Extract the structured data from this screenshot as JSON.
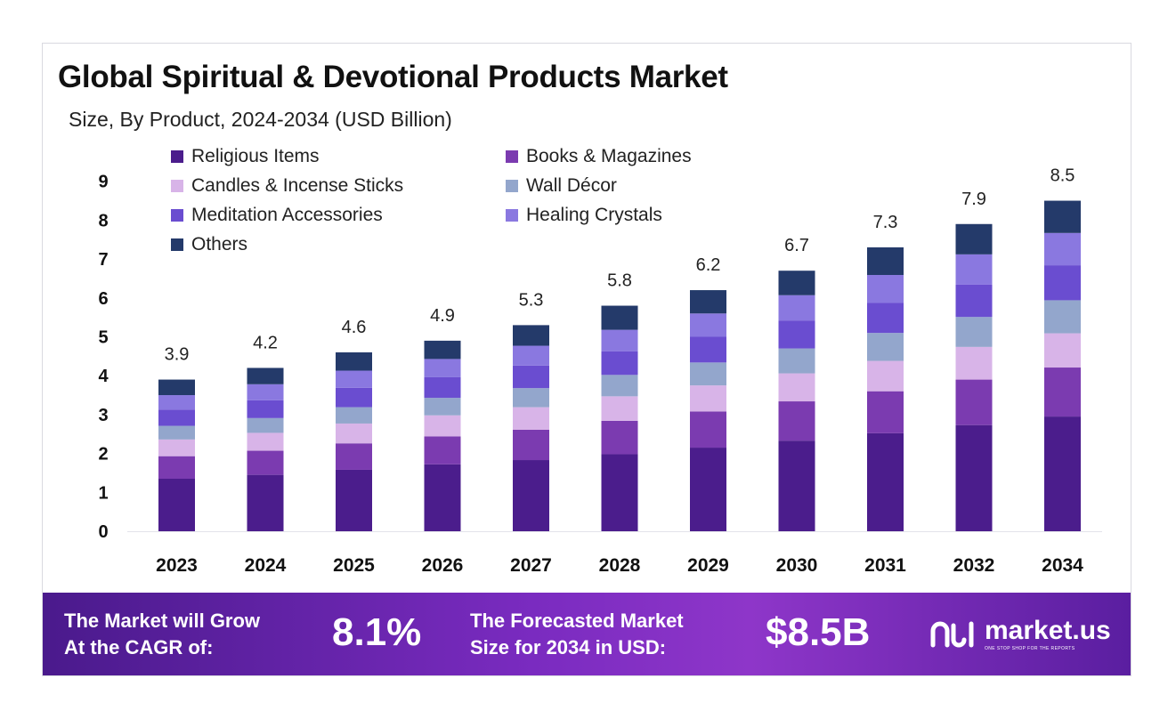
{
  "header": {
    "title": "Global Spiritual & Devotional Products Market",
    "subtitle": "Size, By Product, 2024-2034 (USD Billion)"
  },
  "colors": {
    "religious": "#4b1d8c",
    "books": "#7b3bb0",
    "candles": "#d8b4e8",
    "wall": "#93a6cc",
    "meditation": "#6a4dd0",
    "crystals": "#8a78e0",
    "others": "#243a6a"
  },
  "chart_data": {
    "type": "bar",
    "stacked": true,
    "categories": [
      "2023",
      "2024",
      "2025",
      "2026",
      "2027",
      "2028",
      "2029",
      "2030",
      "2031",
      "2032",
      "2034"
    ],
    "totals_labels": [
      "3.9",
      "4.2",
      "4.6",
      "4.9",
      "5.3",
      "5.8",
      "6.2",
      "6.7",
      "7.3",
      "7.9",
      "8.5"
    ],
    "ylim": [
      0,
      9
    ],
    "yticks": [
      0,
      1,
      2,
      3,
      4,
      5,
      6,
      7,
      8,
      9
    ],
    "legend_placement": "top",
    "series": [
      {
        "name": "Religious Items",
        "color": "#4b1d8c",
        "values": [
          1.35,
          1.45,
          1.58,
          1.72,
          1.83,
          1.98,
          2.15,
          2.33,
          2.52,
          2.73,
          2.95
        ]
      },
      {
        "name": "Books & Magazines",
        "color": "#7b3bb0",
        "values": [
          0.58,
          0.62,
          0.68,
          0.72,
          0.78,
          0.86,
          0.93,
          1.01,
          1.08,
          1.17,
          1.26
        ]
      },
      {
        "name": "Candles & Incense Sticks",
        "color": "#d8b4e8",
        "values": [
          0.43,
          0.46,
          0.51,
          0.54,
          0.58,
          0.63,
          0.67,
          0.72,
          0.78,
          0.84,
          0.88
        ]
      },
      {
        "name": "Wall Décor",
        "color": "#93a6cc",
        "values": [
          0.35,
          0.38,
          0.42,
          0.45,
          0.49,
          0.55,
          0.59,
          0.64,
          0.72,
          0.77,
          0.85
        ]
      },
      {
        "name": "Meditation Accessories",
        "color": "#6a4dd0",
        "values": [
          0.42,
          0.46,
          0.5,
          0.53,
          0.58,
          0.61,
          0.66,
          0.72,
          0.77,
          0.83,
          0.9
        ]
      },
      {
        "name": "Healing Crystals",
        "color": "#8a78e0",
        "values": [
          0.37,
          0.41,
          0.44,
          0.47,
          0.51,
          0.55,
          0.6,
          0.65,
          0.72,
          0.78,
          0.83
        ]
      },
      {
        "name": "Others",
        "color": "#243a6a",
        "values": [
          0.4,
          0.42,
          0.47,
          0.47,
          0.53,
          0.62,
          0.6,
          0.63,
          0.71,
          0.78,
          0.83
        ]
      }
    ]
  },
  "banner": {
    "cagr_text_line1": "The Market will Grow",
    "cagr_text_line2": "At the CAGR of:",
    "cagr_value": "8.1%",
    "forecast_text_line1": "The Forecasted Market",
    "forecast_text_line2": "Size for 2034 in USD:",
    "forecast_value": "$8.5B",
    "logo_name": "market.us",
    "logo_tagline": "ONE STOP SHOP FOR THE REPORTS"
  }
}
